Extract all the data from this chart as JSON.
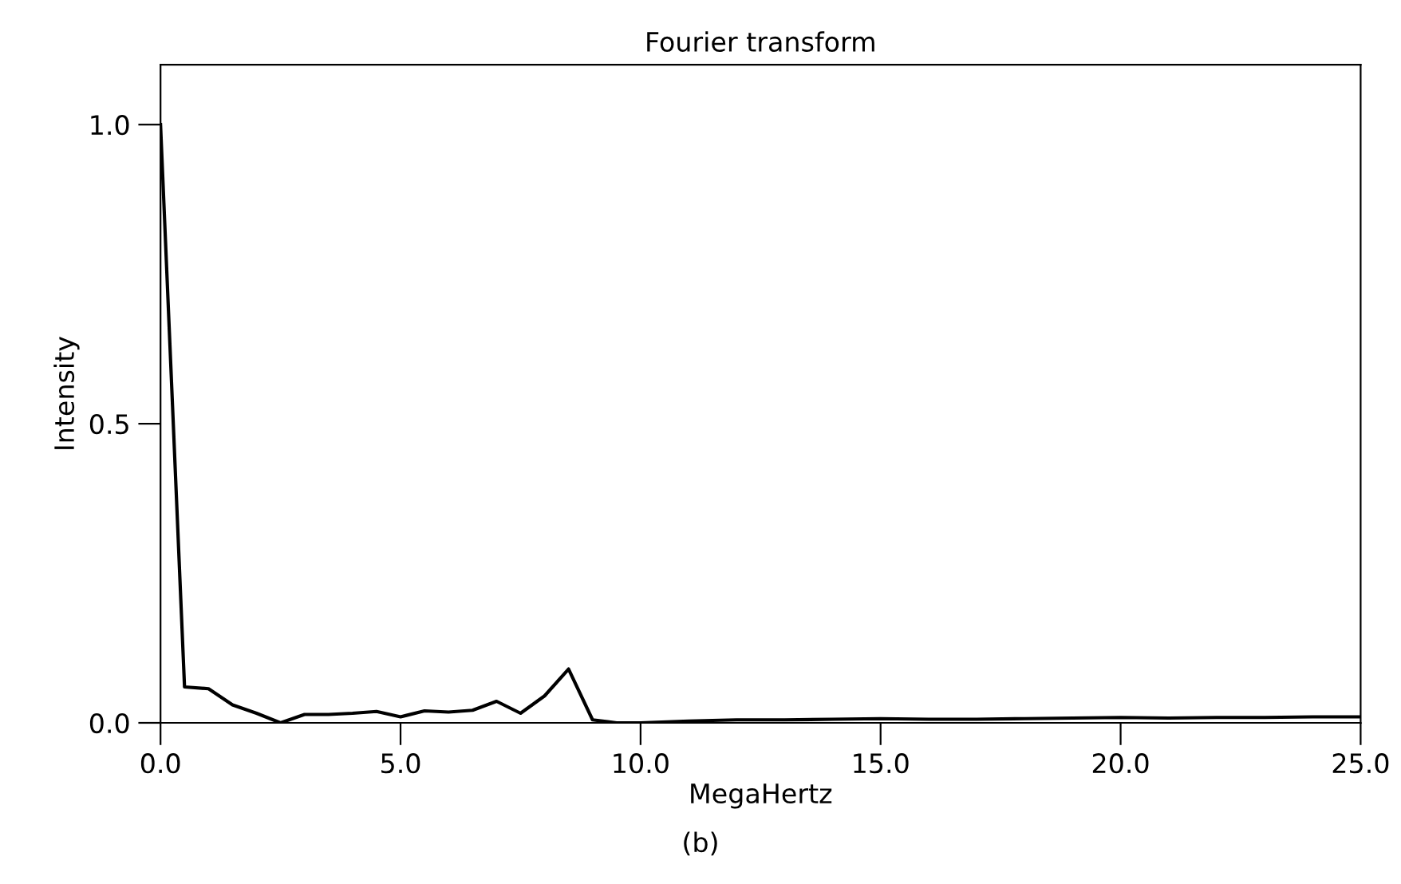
{
  "chart_data": {
    "type": "line",
    "title": "Fourier transform",
    "xlabel": "MegaHertz",
    "ylabel": "Intensity",
    "annotations": [
      "(b)"
    ],
    "x": [
      0,
      0.5,
      1,
      1.5,
      2,
      2.5,
      3,
      3.5,
      4,
      4.5,
      5,
      5.5,
      6,
      6.5,
      7,
      7.5,
      8,
      8.5,
      9,
      9.5,
      10,
      11,
      12,
      13,
      14,
      15,
      16,
      17,
      18,
      19,
      20,
      21,
      22,
      23,
      24,
      25
    ],
    "series": [
      {
        "color": "#000000",
        "values": [
          1.0,
          0.06,
          0.057,
          0.03,
          0.016,
          0.0,
          0.014,
          0.014,
          0.016,
          0.019,
          0.01,
          0.02,
          0.018,
          0.021,
          0.036,
          0.016,
          0.045,
          0.09,
          0.005,
          0.0,
          0.0,
          0.003,
          0.005,
          0.005,
          0.006,
          0.007,
          0.006,
          0.006,
          0.007,
          0.008,
          0.009,
          0.008,
          0.009,
          0.009,
          0.01,
          0.01
        ]
      }
    ],
    "xlim": [
      0,
      25
    ],
    "ylim": [
      0,
      1.1
    ],
    "xticks": [
      {
        "value": 0,
        "label": "0.0"
      },
      {
        "value": 5,
        "label": "5.0"
      },
      {
        "value": 10,
        "label": "10.0"
      },
      {
        "value": 15,
        "label": "15.0"
      },
      {
        "value": 20,
        "label": "20.0"
      },
      {
        "value": 25,
        "label": "25.0"
      }
    ],
    "yticks": [
      {
        "value": 0,
        "label": "0.0"
      },
      {
        "value": 0.5,
        "label": "0.5"
      },
      {
        "value": 1,
        "label": "1.0"
      }
    ],
    "grid": false,
    "legend": false,
    "marker": "none",
    "line_style": "solid"
  }
}
